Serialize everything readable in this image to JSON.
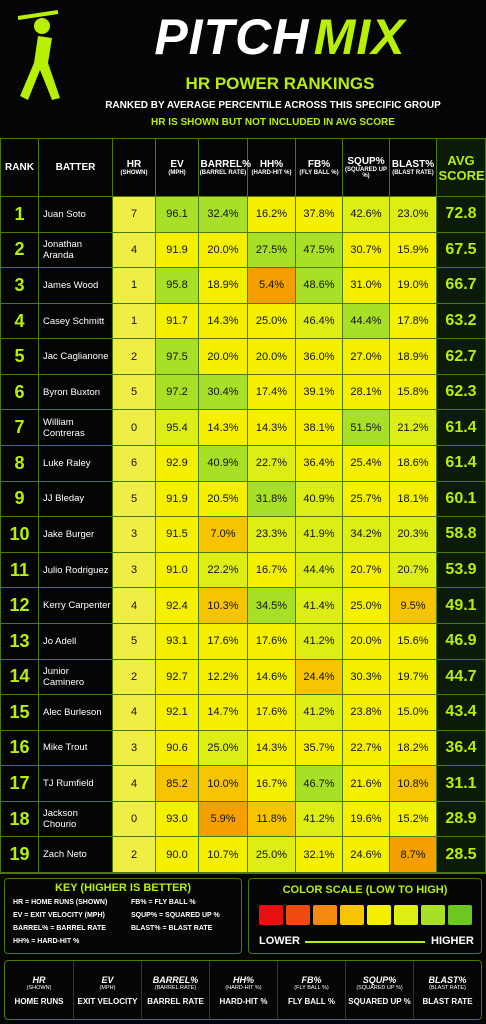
{
  "header": {
    "title_left": "PITCH",
    "title_right": "MIX",
    "subtitle": "HR POWER RANKINGS",
    "note1": "RANKED BY AVERAGE PERCENTILE ACROSS THIS SPECIFIC GROUP",
    "note2": "HR IS SHOWN BUT NOT INCLUDED IN AVG SCORE"
  },
  "table": {
    "columns": [
      {
        "label": "RANK"
      },
      {
        "label": "BATTER"
      },
      {
        "label": "HR",
        "sub": "(SHOWN)"
      },
      {
        "label": "EV",
        "sub": "(MPH)"
      },
      {
        "label": "BARREL%",
        "sub": "(BARREL RATE)"
      },
      {
        "label": "HH%",
        "sub": "(HARD-HIT %)"
      },
      {
        "label": "FB%",
        "sub": "(FLY BALL %)"
      },
      {
        "label": "SQUP%",
        "sub": "(SQUARED UP %)"
      },
      {
        "label": "BLAST%",
        "sub": "(BLAST RATE)"
      },
      {
        "label": "AVG SCORE"
      }
    ],
    "rows": [
      [
        1,
        "Juan Soto",
        7,
        "96.1",
        "32.4%",
        "16.2%",
        "37.8%",
        "42.6%",
        "23.0%",
        "72.8"
      ],
      [
        2,
        "Jonathan Aranda",
        4,
        "91.9",
        "20.0%",
        "27.5%",
        "47.5%",
        "30.7%",
        "15.9%",
        "67.5"
      ],
      [
        3,
        "James Wood",
        1,
        "95.8",
        "18.9%",
        "5.4%",
        "48.6%",
        "31.0%",
        "19.0%",
        "66.7"
      ],
      [
        4,
        "Casey Schmitt",
        1,
        "91.7",
        "14.3%",
        "25.0%",
        "46.4%",
        "44.4%",
        "17.8%",
        "63.2"
      ],
      [
        5,
        "Jac Caglianone",
        2,
        "97.5",
        "20.0%",
        "20.0%",
        "36.0%",
        "27.0%",
        "18.9%",
        "62.7"
      ],
      [
        6,
        "Byron Buxton",
        5,
        "97.2",
        "30.4%",
        "17.4%",
        "39.1%",
        "28.1%",
        "15.8%",
        "62.3"
      ],
      [
        7,
        "William Contreras",
        0,
        "95.4",
        "14.3%",
        "14.3%",
        "38.1%",
        "51.5%",
        "21.2%",
        "61.4"
      ],
      [
        8,
        "Luke Raley",
        6,
        "92.9",
        "40.9%",
        "22.7%",
        "36.4%",
        "25.4%",
        "18.6%",
        "61.4"
      ],
      [
        9,
        "JJ Bleday",
        5,
        "91.9",
        "20.5%",
        "31.8%",
        "40.9%",
        "25.7%",
        "18.1%",
        "60.1"
      ],
      [
        10,
        "Jake Burger",
        3,
        "91.5",
        "7.0%",
        "23.3%",
        "41.9%",
        "34.2%",
        "20.3%",
        "58.8"
      ],
      [
        11,
        "Julio Rodriguez",
        3,
        "91.0",
        "22.2%",
        "16.7%",
        "44.4%",
        "20.7%",
        "20.7%",
        "53.9"
      ],
      [
        12,
        "Kerry Carpenter",
        4,
        "92.4",
        "10.3%",
        "34.5%",
        "41.4%",
        "25.0%",
        "9.5%",
        "49.1"
      ],
      [
        13,
        "Jo Adell",
        5,
        "93.1",
        "17.6%",
        "17.6%",
        "41.2%",
        "20.0%",
        "15.6%",
        "46.9"
      ],
      [
        14,
        "Junior Caminero",
        2,
        "92.7",
        "12.2%",
        "14.6%",
        "24.4%",
        "30.3%",
        "19.7%",
        "44.7"
      ],
      [
        15,
        "Alec Burleson",
        4,
        "92.1",
        "14.7%",
        "17.6%",
        "41.2%",
        "23.8%",
        "15.0%",
        "43.4"
      ],
      [
        16,
        "Mike Trout",
        3,
        "90.6",
        "25.0%",
        "14.3%",
        "35.7%",
        "22.7%",
        "18.2%",
        "36.4"
      ],
      [
        17,
        "TJ Rumfield",
        4,
        "85.2",
        "10.0%",
        "16.7%",
        "46.7%",
        "21.6%",
        "10.8%",
        "31.1"
      ],
      [
        18,
        "Jackson Chourio",
        0,
        "93.0",
        "5.9%",
        "11.8%",
        "41.2%",
        "19.6%",
        "15.2%",
        "28.9"
      ],
      [
        19,
        "Zach Neto",
        2,
        "90.0",
        "10.7%",
        "25.0%",
        "32.1%",
        "24.6%",
        "8.7%",
        "28.5"
      ]
    ],
    "cell_colors": [
      [
        "#eeee44",
        "#a8e028",
        "#a8e028",
        "#f4f000",
        "#f4f000",
        "#dcee14",
        "#dcee14"
      ],
      [
        "#eeee44",
        "#f4f000",
        "#f4f000",
        "#a8e028",
        "#a8e028",
        "#f4f000",
        "#f4f000"
      ],
      [
        "#eeee44",
        "#a8e028",
        "#f4f000",
        "#f5a000",
        "#a8e028",
        "#f4f000",
        "#f4f000"
      ],
      [
        "#eeee44",
        "#f4f000",
        "#f4f000",
        "#f4f000",
        "#dcee14",
        "#a8e028",
        "#f4f000"
      ],
      [
        "#eeee44",
        "#a8e028",
        "#f4f000",
        "#f4f000",
        "#f4f000",
        "#f4f000",
        "#f4f000"
      ],
      [
        "#eeee44",
        "#a8e028",
        "#a8e028",
        "#f4f000",
        "#f4f000",
        "#f4f000",
        "#f4f000"
      ],
      [
        "#eeee44",
        "#dcee14",
        "#f4f000",
        "#f4f000",
        "#f4f000",
        "#a8e028",
        "#dcee14"
      ],
      [
        "#eeee44",
        "#f4f000",
        "#a8e028",
        "#dcee14",
        "#f4f000",
        "#f4f000",
        "#f4f000"
      ],
      [
        "#eeee44",
        "#f4f000",
        "#f4f000",
        "#a8e028",
        "#dcee14",
        "#f4f000",
        "#f4f000"
      ],
      [
        "#eeee44",
        "#f4f000",
        "#f6c400",
        "#dcee14",
        "#dcee14",
        "#dcee14",
        "#dcee14"
      ],
      [
        "#eeee44",
        "#f4f000",
        "#dcee14",
        "#f4f000",
        "#dcee14",
        "#f4f000",
        "#dcee14"
      ],
      [
        "#eeee44",
        "#f4f000",
        "#f6c400",
        "#a8e028",
        "#dcee14",
        "#f4f000",
        "#f6c400"
      ],
      [
        "#eeee44",
        "#f4f000",
        "#f4f000",
        "#f4f000",
        "#dcee14",
        "#f4f000",
        "#f4f000"
      ],
      [
        "#eeee44",
        "#f4f000",
        "#f4f000",
        "#f4f000",
        "#f6c400",
        "#f4f000",
        "#f4f000"
      ],
      [
        "#eeee44",
        "#f4f000",
        "#f4f000",
        "#f4f000",
        "#dcee14",
        "#f4f000",
        "#f4f000"
      ],
      [
        "#eeee44",
        "#f4f000",
        "#dcee14",
        "#f4f000",
        "#f4f000",
        "#f4f000",
        "#f4f000"
      ],
      [
        "#eeee44",
        "#f6c400",
        "#f6c400",
        "#f4f000",
        "#a8e028",
        "#f4f000",
        "#f6c400"
      ],
      [
        "#eeee44",
        "#f4f000",
        "#f5a000",
        "#f6c400",
        "#dcee14",
        "#f4f000",
        "#f4f000"
      ],
      [
        "#eeee44",
        "#f4f000",
        "#f4f000",
        "#dcee14",
        "#f4f000",
        "#f4f000",
        "#f5a000"
      ]
    ]
  },
  "key": {
    "title": "KEY (HIGHER IS BETTER)",
    "items": [
      "HR = HOME RUNS (SHOWN)",
      "EV = EXIT VELOCITY (MPH)",
      "BARREL% = BARREL RATE",
      "HH% = HARD-HIT %",
      "FB% = FLY BALL %",
      "SQUP% = SQUARED UP %",
      "BLAST% = BLAST RATE"
    ],
    "scale_title": "COLOR SCALE (LOW TO HIGH)",
    "scale_colors": [
      "#e81010",
      "#f04a10",
      "#f58a10",
      "#f6c400",
      "#f4f000",
      "#dcee14",
      "#a8e028",
      "#6cc820"
    ],
    "lower": "LOWER",
    "higher": "HIGHER"
  },
  "footer": [
    {
      "label": "HR",
      "sub": "(SHOWN)",
      "name": "HOME RUNS"
    },
    {
      "label": "EV",
      "sub": "(MPH)",
      "name": "EXIT VELOCITY"
    },
    {
      "label": "BARREL%",
      "sub": "(BARREL RATE)",
      "name": "BARREL RATE"
    },
    {
      "label": "HH%",
      "sub": "(HARD-HIT %)",
      "name": "HARD-HIT %"
    },
    {
      "label": "FB%",
      "sub": "(FLY BALL %)",
      "name": "FLY BALL %"
    },
    {
      "label": "SQUP%",
      "sub": "(SQUARED UP %)",
      "name": "SQUARED UP %"
    },
    {
      "label": "BLAST%",
      "sub": "(BLAST RATE)",
      "name": "BLAST RATE"
    }
  ]
}
